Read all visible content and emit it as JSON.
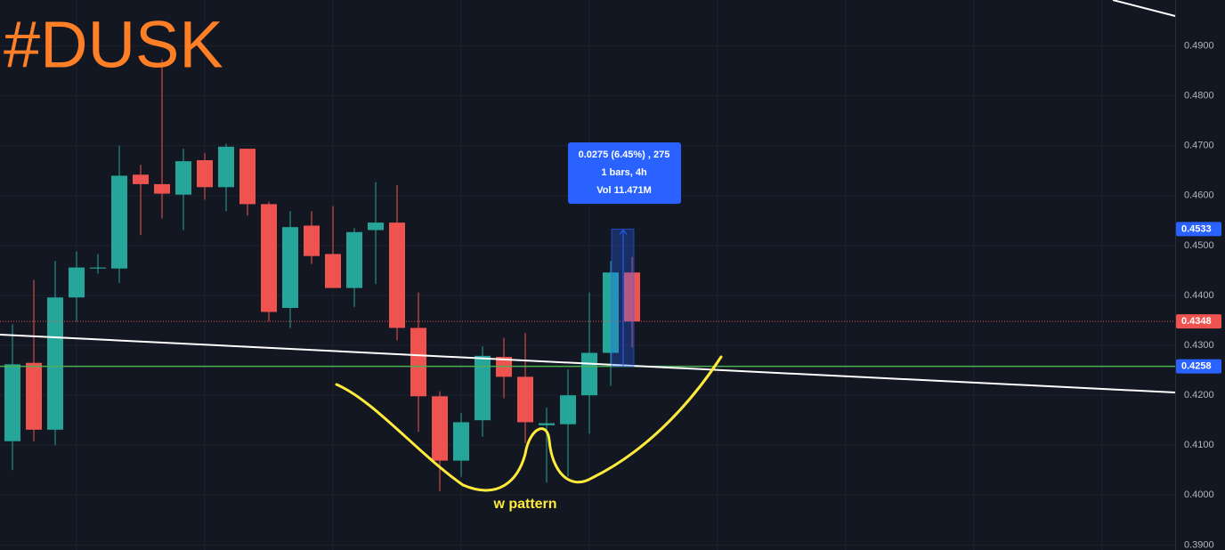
{
  "chart_data": {
    "type": "candlestick",
    "title": "#DUSK",
    "annotation": "w pattern",
    "measure": [
      "0.0275 (6.45%) , 275",
      "1 bars, 4h",
      "Vol 11.471M"
    ],
    "up_color": "#26a69a",
    "down_color": "#ef5350",
    "open": [
      0.4108,
      0.4265,
      0.4131,
      0.4396,
      0.4454,
      0.4454,
      0.4642,
      0.4623,
      0.4602,
      0.4671,
      0.4617,
      0.4694,
      0.4583,
      0.4375,
      0.454,
      0.4483,
      0.4415,
      0.4531,
      0.4546,
      0.4335,
      0.4198,
      0.4069,
      0.415,
      0.4277,
      0.4237,
      0.414,
      0.4142,
      0.42,
      0.4285,
      0.4446
    ],
    "high": [
      0.4342,
      0.4431,
      0.4469,
      0.4488,
      0.4483,
      0.47,
      0.4662,
      0.4873,
      0.4694,
      0.4685,
      0.4704,
      0.4694,
      0.4588,
      0.4569,
      0.4569,
      0.4579,
      0.4535,
      0.4627,
      0.4621,
      0.4406,
      0.4208,
      0.4165,
      0.4298,
      0.4315,
      0.4325,
      0.4175,
      0.4252,
      0.4406,
      0.4469,
      0.4477
    ],
    "low": [
      0.405,
      0.4108,
      0.41,
      0.4348,
      0.4444,
      0.4425,
      0.4521,
      0.4554,
      0.4531,
      0.4592,
      0.4569,
      0.456,
      0.4348,
      0.4335,
      0.4463,
      0.4415,
      0.4377,
      0.4423,
      0.431,
      0.4127,
      0.4008,
      0.4037,
      0.4117,
      0.4194,
      0.4104,
      0.4025,
      0.4037,
      0.4123,
      0.4219,
      0.4296
    ],
    "close": [
      0.4262,
      0.4131,
      0.4396,
      0.4456,
      0.4456,
      0.464,
      0.4623,
      0.4604,
      0.4669,
      0.4617,
      0.4698,
      0.4583,
      0.4367,
      0.4537,
      0.4479,
      0.4415,
      0.4527,
      0.4546,
      0.4335,
      0.4198,
      0.4069,
      0.4146,
      0.4279,
      0.4237,
      0.4146,
      0.4144,
      0.42,
      0.4285,
      0.4446,
      0.4348
    ],
    "ylim": [
      0.389,
      0.4992
    ],
    "yticks": [
      {
        "value": 0.39,
        "label": "0.3900"
      },
      {
        "value": 0.4,
        "label": "0.4000"
      },
      {
        "value": 0.41,
        "label": "0.4100"
      },
      {
        "value": 0.42,
        "label": "0.4200"
      },
      {
        "value": 0.43,
        "label": "0.4300"
      },
      {
        "value": 0.44,
        "label": "0.4400"
      },
      {
        "value": 0.45,
        "label": "0.4500"
      },
      {
        "value": 0.46,
        "label": "0.4600"
      },
      {
        "value": 0.47,
        "label": "0.4700"
      },
      {
        "value": 0.48,
        "label": "0.4800"
      },
      {
        "value": 0.49,
        "label": "0.4900"
      }
    ],
    "price_labels": [
      {
        "value": 0.4533,
        "label": "0.4533",
        "color": "#2962ff"
      },
      {
        "value": 0.4348,
        "label": "0.4348",
        "color": "#ef5350"
      },
      {
        "value": 0.4258,
        "label": "0.4258",
        "color": "#2962ff"
      }
    ],
    "grid": true
  }
}
